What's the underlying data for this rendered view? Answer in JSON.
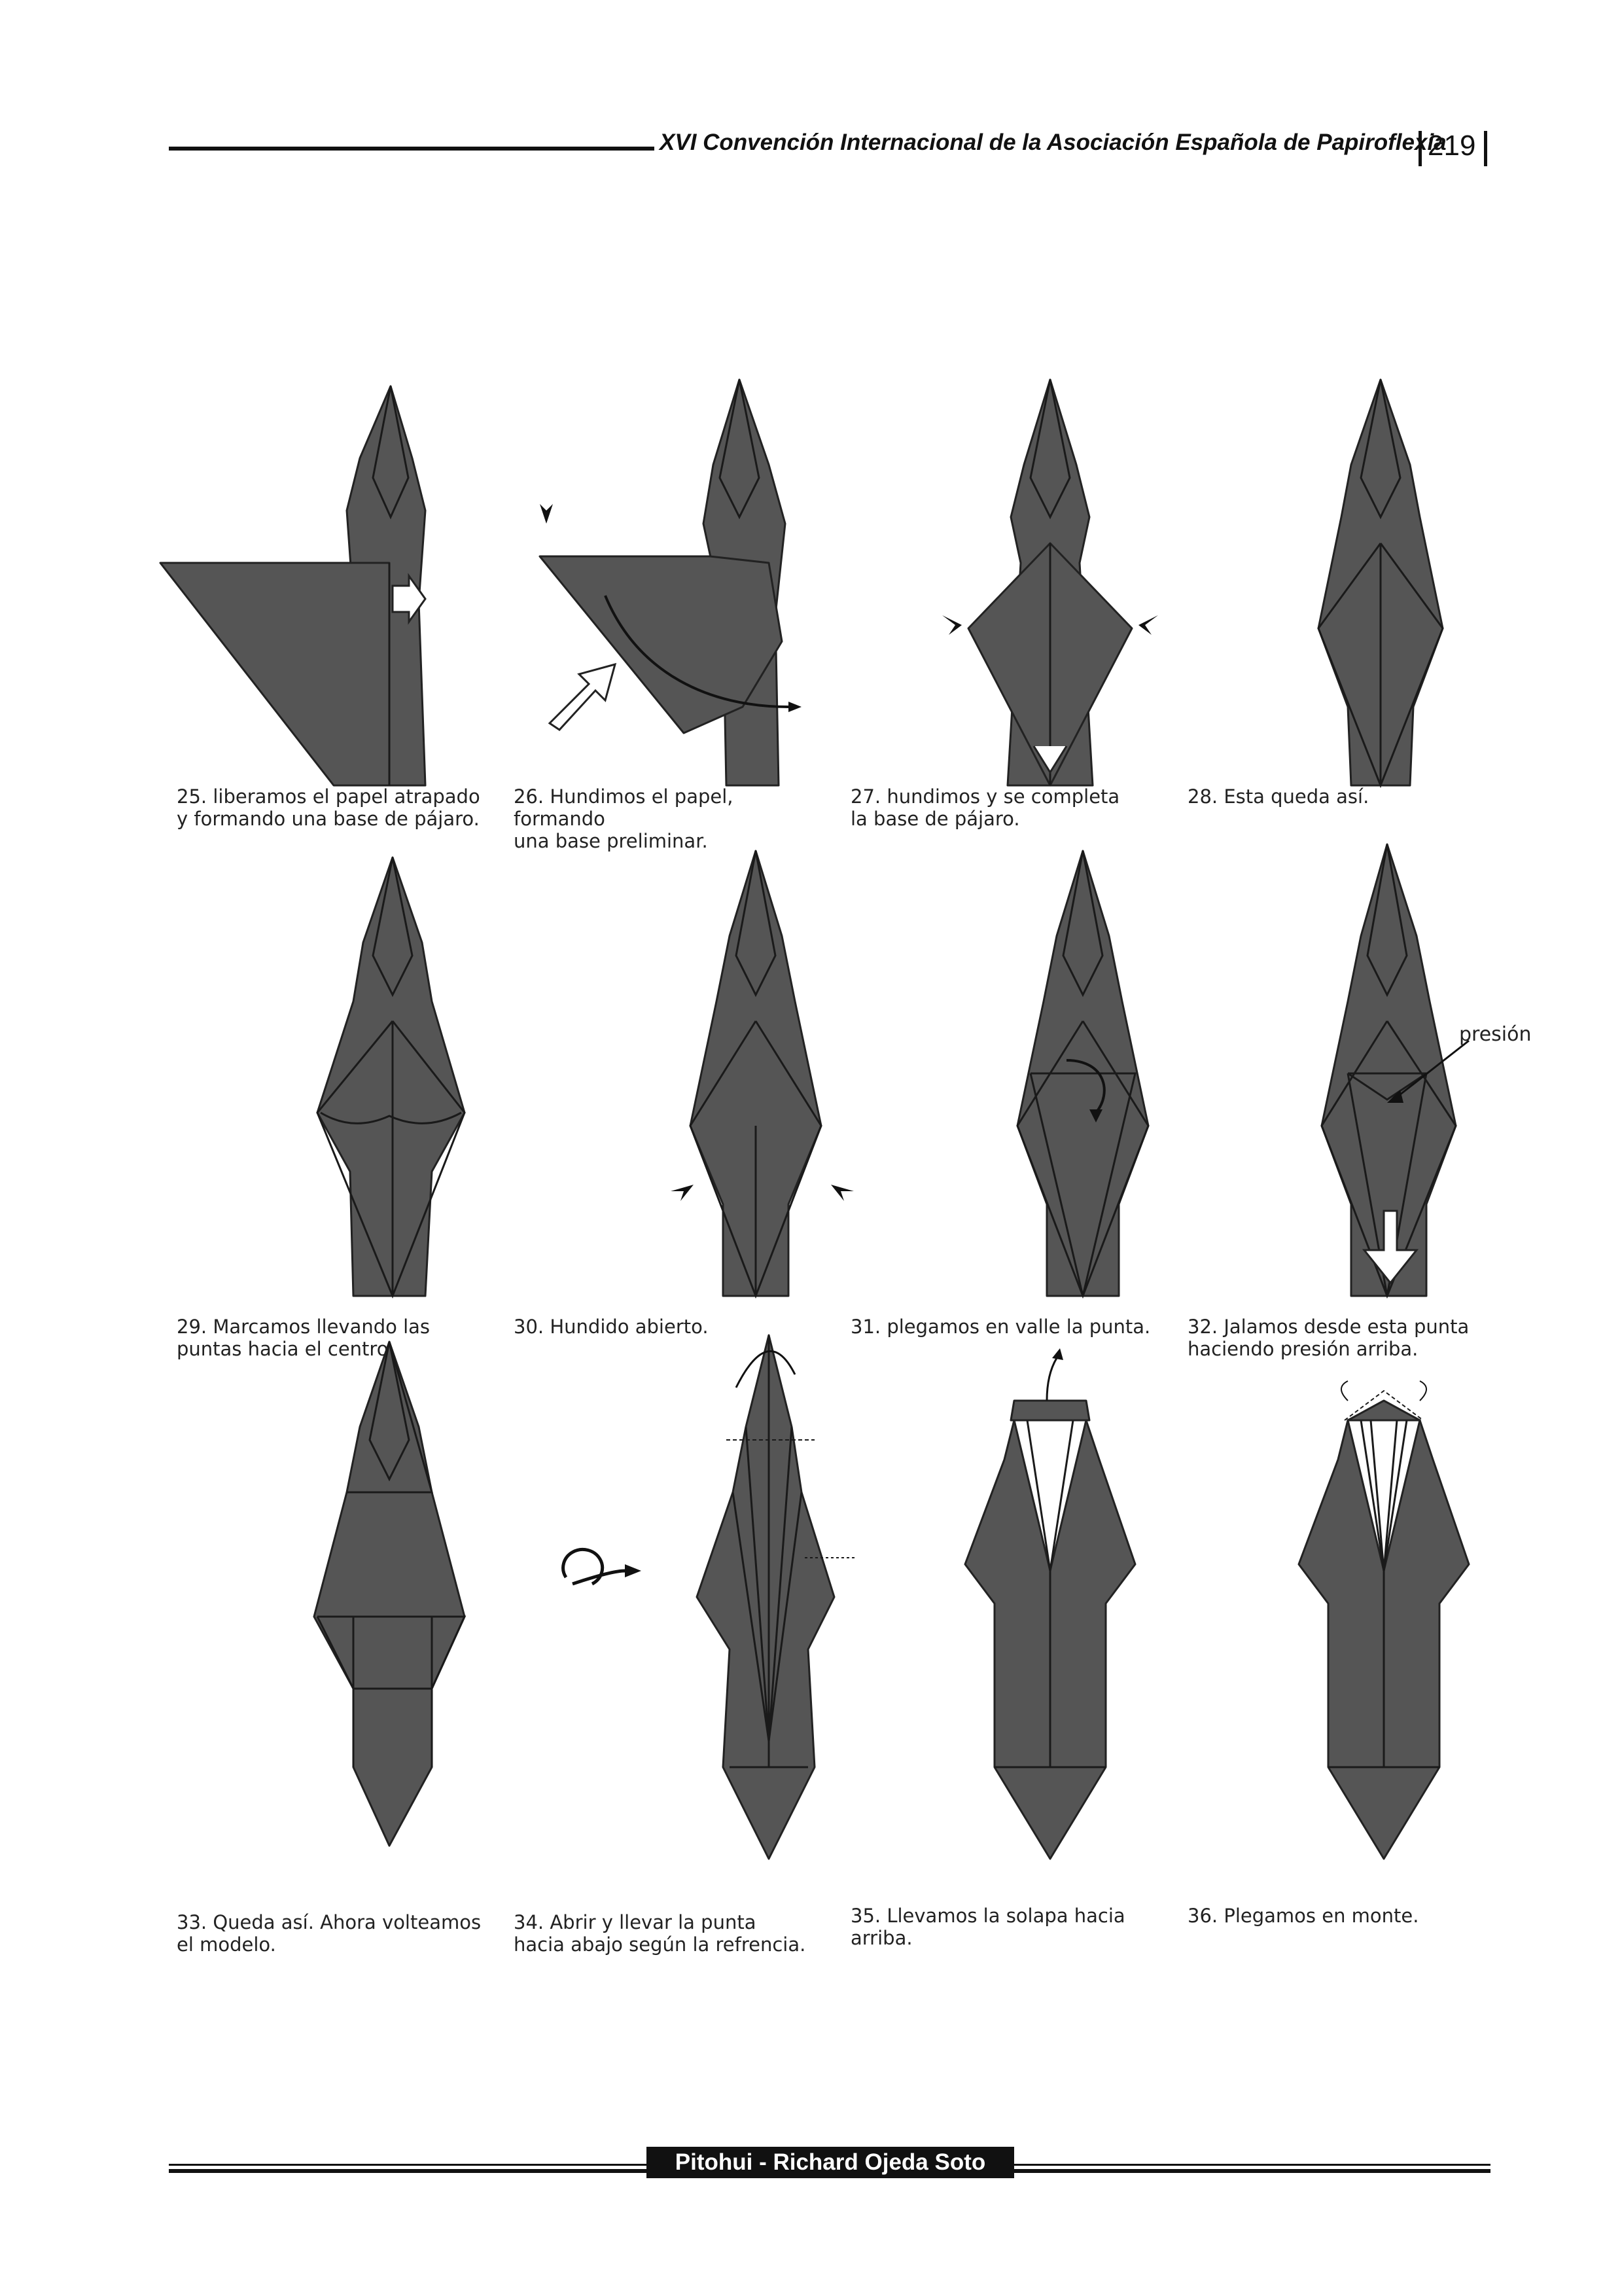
{
  "header": {
    "title": "XVI Convención Internacional de la Asociación Española de Papiroflexia",
    "page_number": "219"
  },
  "steps": [
    {
      "caption": "25. liberamos el papel atrapado\ny formando una base de pájaro."
    },
    {
      "caption": "26. Hundimos el papel, formando\nuna base preliminar."
    },
    {
      "caption": "27. hundimos y se completa\nla base de pájaro."
    },
    {
      "caption": "28. Esta queda así."
    },
    {
      "caption": "29. Marcamos llevando las\npuntas hacia el centro."
    },
    {
      "caption": "30. Hundido abierto."
    },
    {
      "caption": "31. plegamos en valle la punta."
    },
    {
      "caption": "32. Jalamos desde esta punta\nhaciendo presión arriba."
    },
    {
      "caption": "33. Queda así. Ahora volteamos\nel modelo."
    },
    {
      "caption": "34. Abrir y llevar la punta\nhacia abajo según la refrencia."
    },
    {
      "caption": "35. Llevamos la solapa hacia\narriba."
    },
    {
      "caption": "36. Plegamos en monte."
    }
  ],
  "annotations": {
    "pressure_label": "presión"
  },
  "footer": {
    "credit": "Pitohui - Richard Ojeda Soto"
  },
  "colors": {
    "paper": "#555555",
    "ink": "#111111"
  }
}
